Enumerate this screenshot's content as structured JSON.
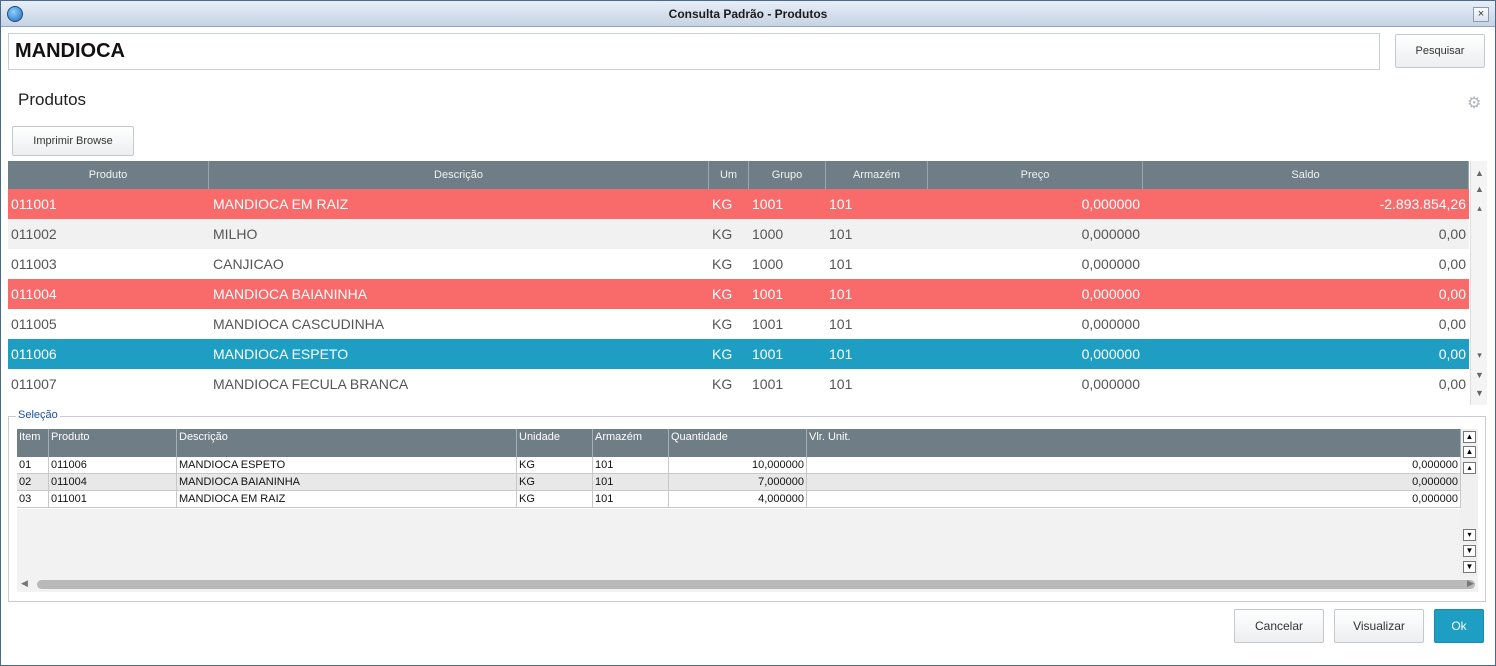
{
  "window": {
    "title": "Consulta Padrão - Produtos",
    "close_glyph": "×"
  },
  "search": {
    "value": "MANDIOCA",
    "button_label": "Pesquisar"
  },
  "section": {
    "title": "Produtos",
    "print_button_label": "Imprimir Browse"
  },
  "grid": {
    "columns": [
      "Produto",
      "Descrição",
      "Um",
      "Grupo",
      "Armazém",
      "Preço",
      "Saldo"
    ],
    "rows": [
      {
        "produto": "011001",
        "descricao": "MANDIOCA EM RAIZ",
        "um": "KG",
        "grupo": "1001",
        "armazem": "101",
        "preco": "0,000000",
        "saldo": "-2.893.854,26",
        "style": "red"
      },
      {
        "produto": "011002",
        "descricao": "MILHO",
        "um": "KG",
        "grupo": "1000",
        "armazem": "101",
        "preco": "0,000000",
        "saldo": "0,00",
        "style": "even"
      },
      {
        "produto": "011003",
        "descricao": "CANJICAO",
        "um": "KG",
        "grupo": "1000",
        "armazem": "101",
        "preco": "0,000000",
        "saldo": "0,00",
        "style": "odd"
      },
      {
        "produto": "011004",
        "descricao": "MANDIOCA BAIANINHA",
        "um": "KG",
        "grupo": "1001",
        "armazem": "101",
        "preco": "0,000000",
        "saldo": "0,00",
        "style": "red"
      },
      {
        "produto": "011005",
        "descricao": "MANDIOCA CASCUDINHA",
        "um": "KG",
        "grupo": "1001",
        "armazem": "101",
        "preco": "0,000000",
        "saldo": "0,00",
        "style": "odd"
      },
      {
        "produto": "011006",
        "descricao": "MANDIOCA ESPETO",
        "um": "KG",
        "grupo": "1001",
        "armazem": "101",
        "preco": "0,000000",
        "saldo": "0,00",
        "style": "sel"
      },
      {
        "produto": "011007",
        "descricao": "MANDIOCA FECULA BRANCA",
        "um": "KG",
        "grupo": "1001",
        "armazem": "101",
        "preco": "0,000000",
        "saldo": "0,00",
        "style": "odd"
      }
    ]
  },
  "selection": {
    "label": "Seleção",
    "columns": [
      "Item",
      "Produto",
      "Descrição",
      "Unidade",
      "Armazém",
      "Quantidade",
      "Vlr. Unit."
    ],
    "rows": [
      {
        "item": "01",
        "produto": "011006",
        "descricao": "MANDIOCA ESPETO",
        "unidade": "KG",
        "armazem": "101",
        "quantidade": "10,000000",
        "vlr_unit": "0,000000"
      },
      {
        "item": "02",
        "produto": "011004",
        "descricao": "MANDIOCA BAIANINHA",
        "unidade": "KG",
        "armazem": "101",
        "quantidade": "7,000000",
        "vlr_unit": "0,000000"
      },
      {
        "item": "03",
        "produto": "011001",
        "descricao": "MANDIOCA EM RAIZ",
        "unidade": "KG",
        "armazem": "101",
        "quantidade": "4,000000",
        "vlr_unit": "0,000000"
      }
    ]
  },
  "footer": {
    "cancel_label": "Cancelar",
    "view_label": "Visualizar",
    "ok_label": "Ok"
  },
  "colors": {
    "highlight_red": "#f96b6b",
    "selected_blue": "#1f9ec3",
    "header_gray": "#6f7d86"
  },
  "icons": {
    "gear": "gear-icon",
    "app": "app-icon"
  }
}
